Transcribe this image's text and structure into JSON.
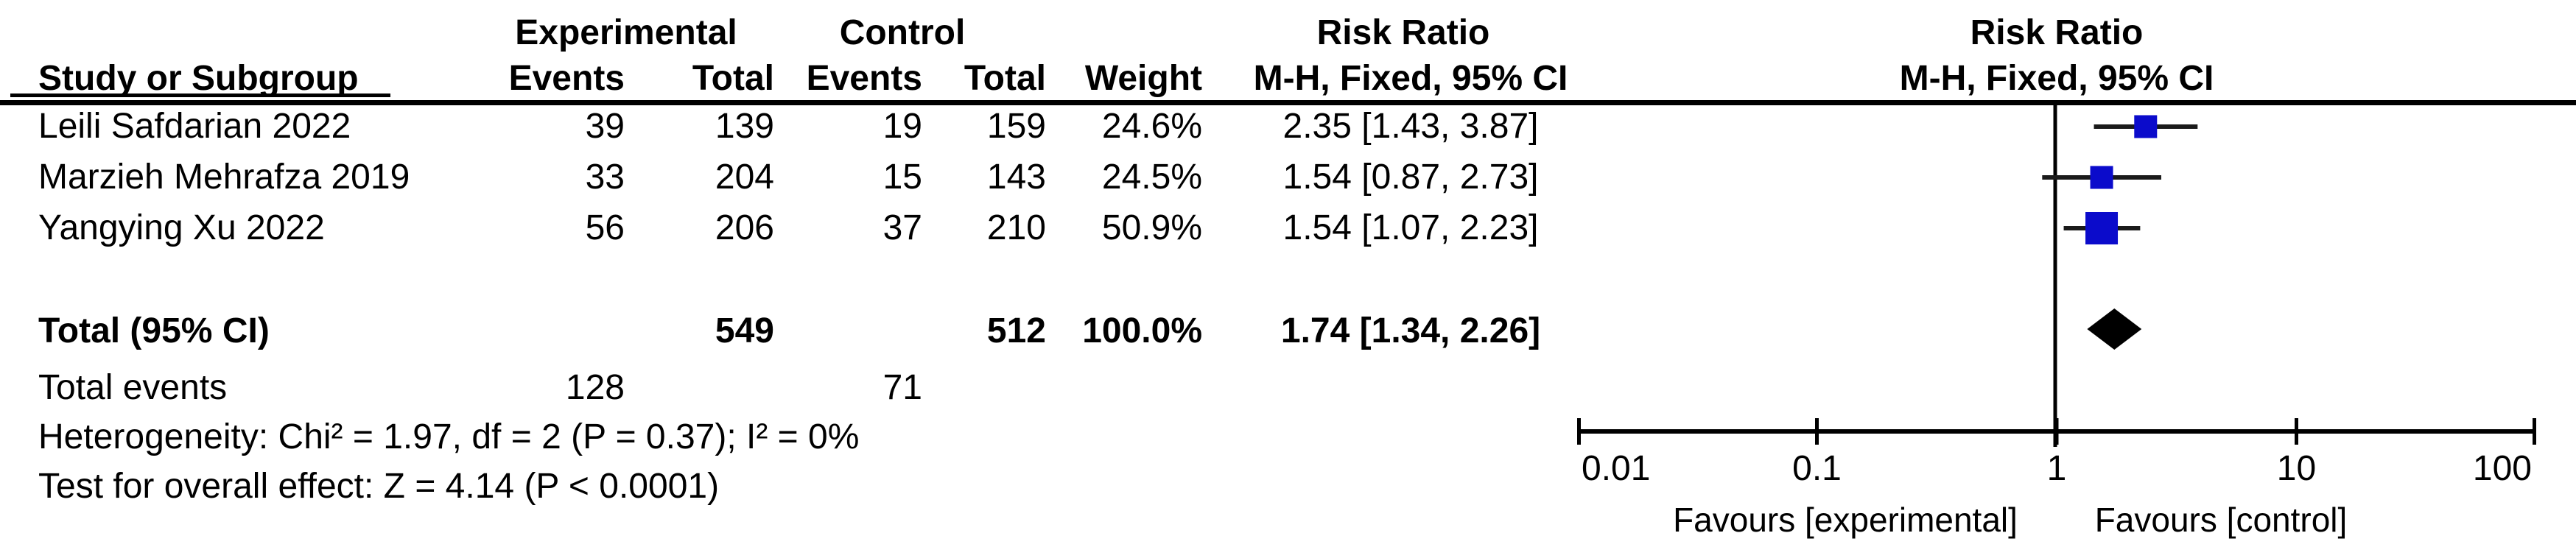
{
  "header": {
    "experimental": "Experimental",
    "control": "Control",
    "risk_ratio": "Risk Ratio",
    "study_or_subgroup": "Study or Subgroup",
    "events": "Events",
    "total": "Total",
    "weight": "Weight",
    "method": "M-H, Fixed, 95% CI"
  },
  "chart_data": {
    "type": "forest",
    "effect_measure": "Risk Ratio",
    "model": "M-H, Fixed, 95% CI",
    "studies": [
      {
        "name": "Leili Safdarian 2022",
        "exp_events": "39",
        "exp_total": "139",
        "ctrl_events": "19",
        "ctrl_total": "159",
        "weight": "24.6%",
        "weight_pct": 24.6,
        "rr": 2.35,
        "ci_low": 1.43,
        "ci_high": 3.87,
        "effect_label": "2.35 [1.43, 3.87]"
      },
      {
        "name": "Marzieh Mehrafza 2019",
        "exp_events": "33",
        "exp_total": "204",
        "ctrl_events": "15",
        "ctrl_total": "143",
        "weight": "24.5%",
        "weight_pct": 24.5,
        "rr": 1.54,
        "ci_low": 0.87,
        "ci_high": 2.73,
        "effect_label": "1.54 [0.87, 2.73]"
      },
      {
        "name": "Yangying Xu 2022",
        "exp_events": "56",
        "exp_total": "206",
        "ctrl_events": "37",
        "ctrl_total": "210",
        "weight": "50.9%",
        "weight_pct": 50.9,
        "rr": 1.54,
        "ci_low": 1.07,
        "ci_high": 2.23,
        "effect_label": "1.54 [1.07, 2.23]"
      }
    ],
    "total": {
      "label": "Total (95% CI)",
      "exp_total": "549",
      "ctrl_total": "512",
      "weight": "100.0%",
      "rr": 1.74,
      "ci_low": 1.34,
      "ci_high": 2.26,
      "effect_label": "1.74 [1.34, 2.26]"
    },
    "total_events": {
      "label": "Total events",
      "experimental": "128",
      "control": "71"
    },
    "heterogeneity": "Heterogeneity: Chi² = 1.97, df = 2 (P = 0.37); I² = 0%",
    "test_overall": "Test for overall effect: Z = 4.14 (P < 0.0001)",
    "x_axis": {
      "scale": "log10",
      "ticks": [
        0.01,
        0.1,
        1,
        10,
        100
      ],
      "tick_labels": [
        "0.01",
        "0.1",
        "1",
        "10",
        "100"
      ],
      "range": [
        0.01,
        100
      ]
    },
    "favours_left": "Favours [experimental]",
    "favours_right": "Favours [control]",
    "colors": {
      "square": "#0b0bcb",
      "diamond": "#000000",
      "ci_line": "#1a1a1a",
      "axis": "#000000",
      "text": "#000000"
    }
  }
}
